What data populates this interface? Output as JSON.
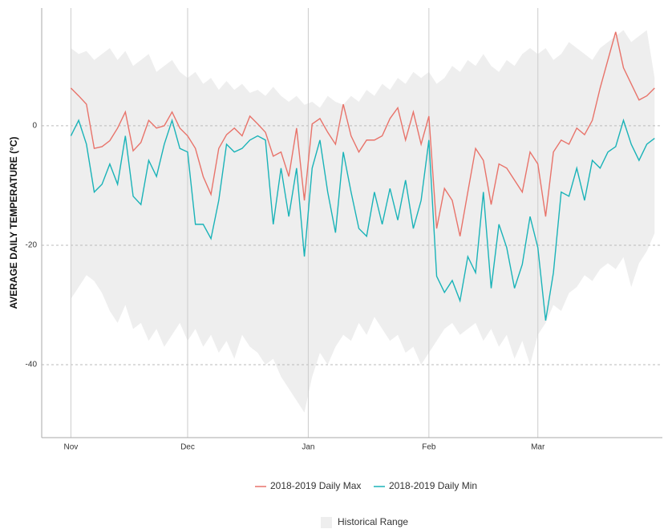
{
  "chart_data": {
    "type": "line",
    "y_label": "AVERAGE DAILY TEMPERATURE (°C)",
    "x": [
      0,
      2,
      4,
      6,
      8,
      10,
      12,
      14,
      16,
      18,
      20,
      22,
      24,
      26,
      28,
      30,
      32,
      34,
      36,
      38,
      40,
      42,
      44,
      46,
      48,
      50,
      52,
      54,
      56,
      58,
      60,
      62,
      64,
      66,
      68,
      70,
      72,
      74,
      76,
      78,
      80,
      82,
      84,
      86,
      88,
      90,
      92,
      94,
      96,
      98,
      100,
      102,
      104,
      106,
      108,
      110,
      112,
      114,
      116,
      118,
      120,
      122,
      124,
      126,
      128,
      130,
      132,
      134,
      136,
      138,
      140,
      142,
      144,
      146,
      148,
      150
    ],
    "xlim": [
      -7.5,
      152
    ],
    "xticks": [
      {
        "value": 0,
        "label": "Nov"
      },
      {
        "value": 30,
        "label": "Dec"
      },
      {
        "value": 61,
        "label": "Jan"
      },
      {
        "value": 92,
        "label": "Feb"
      },
      {
        "value": 120,
        "label": "Mar"
      }
    ],
    "ylim": [
      -52.2,
      19.7
    ],
    "yticks": [
      0,
      -20,
      -40
    ],
    "grid": true,
    "series": [
      {
        "name": "2018-2019 Daily Max",
        "color": "#e8736a",
        "values": [
          6.3,
          5,
          3.6,
          -3.8,
          -3.5,
          -2.5,
          -0.4,
          2.3,
          -4.2,
          -2.8,
          0.9,
          -0.4,
          0,
          2.3,
          -0.4,
          -1.7,
          -3.8,
          -8.5,
          -11.5,
          -3.8,
          -1.5,
          -0.4,
          -1.7,
          1.6,
          0.3,
          -1.1,
          -5.1,
          -4.4,
          -8.5,
          -0.4,
          -12.5,
          0.3,
          1.2,
          -1.1,
          -3.1,
          3.6,
          -1.7,
          -4.4,
          -2.4,
          -2.4,
          -1.7,
          1.2,
          3,
          -2.4,
          2.3,
          -3.1,
          1.6,
          -17.2,
          -10.5,
          -12.5,
          -18.5,
          -11.1,
          -3.8,
          -5.8,
          -13.2,
          -6.4,
          -7.1,
          -9.1,
          -11.1,
          -4.4,
          -6.4,
          -15.2,
          -4.4,
          -2.4,
          -3.1,
          -0.4,
          -1.5,
          0.9,
          6.3,
          11,
          15.7,
          9.7,
          7,
          4.3,
          5,
          6.3
        ]
      },
      {
        "name": "2018-2019 Daily Min",
        "color": "#1ab3b8",
        "values": [
          -1.7,
          0.9,
          -3.1,
          -11.1,
          -9.8,
          -6.4,
          -9.8,
          -1.7,
          -11.8,
          -13.2,
          -5.8,
          -8.5,
          -3.1,
          0.9,
          -3.8,
          -4.4,
          -16.5,
          -16.5,
          -18.9,
          -12.5,
          -3.1,
          -4.4,
          -3.8,
          -2.4,
          -1.7,
          -2.4,
          -16.5,
          -7.1,
          -15.2,
          -7.1,
          -21.9,
          -7.1,
          -2.4,
          -11.1,
          -17.9,
          -4.4,
          -11.1,
          -17.2,
          -18.5,
          -11.1,
          -16.5,
          -10.5,
          -15.8,
          -9.1,
          -17.2,
          -12.5,
          -2.4,
          -25.2,
          -27.9,
          -25.9,
          -29.3,
          -21.9,
          -24.6,
          -11.1,
          -27.2,
          -16.5,
          -20.4,
          -27.2,
          -23.2,
          -15.2,
          -20.4,
          -32.6,
          -24.6,
          -11.1,
          -11.8,
          -7.1,
          -12.5,
          -5.8,
          -7.1,
          -4.4,
          -3.5,
          0.9,
          -3.1,
          -5.8,
          -3.1,
          -2.1
        ]
      }
    ],
    "band": {
      "name": "Historical Range",
      "color": "#eeeeee",
      "upper": [
        13,
        12,
        12.5,
        11,
        12,
        13,
        11,
        12.5,
        10,
        11,
        12,
        9,
        10,
        11,
        9,
        8,
        9,
        7,
        8,
        6,
        7.5,
        6,
        7,
        5.5,
        6,
        5,
        6.5,
        5,
        4,
        5,
        3.5,
        4,
        3,
        5,
        4,
        3.5,
        5,
        4,
        6,
        5,
        7,
        6,
        8,
        7,
        9,
        8,
        9,
        7,
        8,
        10,
        9,
        11,
        10,
        12,
        10,
        9,
        11,
        10,
        12,
        13,
        12,
        13,
        11,
        12,
        14,
        13,
        12,
        11,
        13,
        14,
        15,
        16,
        14,
        15,
        16,
        8
      ],
      "lower": [
        -29,
        -27,
        -25,
        -26,
        -28,
        -31,
        -33,
        -30,
        -34,
        -33,
        -36,
        -34,
        -37,
        -35,
        -33,
        -36,
        -34,
        -37,
        -35,
        -38,
        -36,
        -39,
        -35,
        -37,
        -38,
        -40,
        -39,
        -42,
        -44,
        -46,
        -48,
        -42,
        -38,
        -40,
        -37,
        -35,
        -36,
        -33,
        -35,
        -32,
        -34,
        -36,
        -35,
        -38,
        -37,
        -40,
        -38,
        -36,
        -34,
        -33,
        -35,
        -34,
        -33,
        -36,
        -34,
        -37,
        -35,
        -39,
        -36,
        -40,
        -35,
        -33,
        -30,
        -31,
        -28,
        -27,
        -25,
        -26,
        -24,
        -23,
        -24,
        -22,
        -27,
        -23,
        -21,
        -18
      ]
    }
  }
}
